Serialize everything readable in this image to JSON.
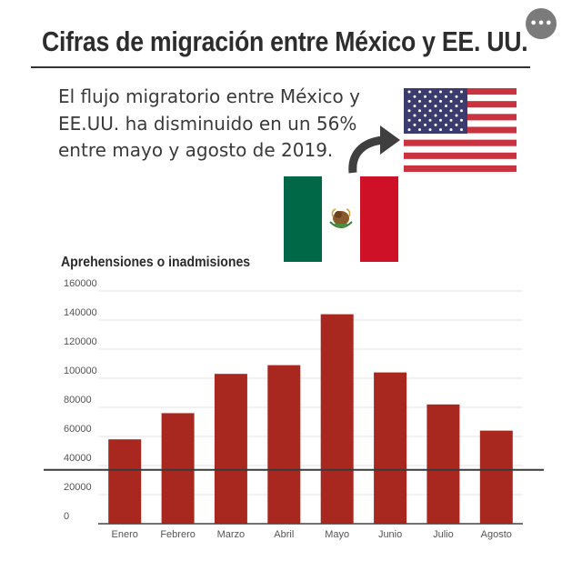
{
  "header": {
    "title": "Cifras de migración entre México y EE. UU.",
    "menu_label": "•••"
  },
  "intro": {
    "text": "El flujo migratorio entre México y EE.UU. ha disminuido en un 56% entre mayo y agosto de 2019."
  },
  "icons": {
    "us_flag": "us-flag-icon",
    "mexico_flag": "mexico-flag-icon",
    "arrow": "curved-arrow-icon"
  },
  "colors": {
    "bar": "#a8281f",
    "us_red": "#c8333f",
    "us_blue": "#3c3b6e",
    "mx_green": "#006847",
    "mx_red": "#ce1126"
  },
  "chart_data": {
    "type": "bar",
    "title": "Aprehensiones o inadmisiones",
    "categories": [
      "Enero",
      "Febrero",
      "Marzo",
      "Abril",
      "Mayo",
      "Junio",
      "Julio",
      "Agosto"
    ],
    "values": [
      58000,
      76000,
      103000,
      109000,
      144000,
      104000,
      82000,
      64000
    ],
    "yticks": [
      0,
      20000,
      40000,
      60000,
      80000,
      100000,
      120000,
      140000,
      160000
    ],
    "ytick_labels": [
      "0",
      "20000",
      "40000",
      "60000",
      "80000",
      "100000",
      "120000",
      "140000",
      "160000"
    ],
    "ylim": [
      0,
      160000
    ],
    "reference_line": 37000,
    "xlabel": "",
    "ylabel": "",
    "grid": true
  }
}
